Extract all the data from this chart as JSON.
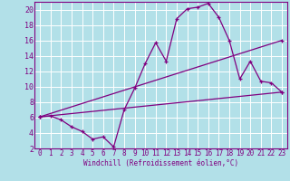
{
  "xlabel": "Windchill (Refroidissement éolien,°C)",
  "background_color": "#b2e0e8",
  "grid_color": "#c8eaf0",
  "line_color": "#800080",
  "spine_color": "#800080",
  "xlim": [
    -0.5,
    23.5
  ],
  "ylim": [
    2,
    21
  ],
  "yticks": [
    2,
    4,
    6,
    8,
    10,
    12,
    14,
    16,
    18,
    20
  ],
  "xticks": [
    0,
    1,
    2,
    3,
    4,
    5,
    6,
    7,
    8,
    9,
    10,
    11,
    12,
    13,
    14,
    15,
    16,
    17,
    18,
    19,
    20,
    21,
    22,
    23
  ],
  "line1_x": [
    0,
    1,
    2,
    3,
    4,
    5,
    6,
    7,
    8,
    9,
    10,
    11,
    12,
    13,
    14,
    15,
    16,
    17,
    18,
    19,
    20,
    21,
    22,
    23
  ],
  "line1_y": [
    6.1,
    6.2,
    5.7,
    4.8,
    4.2,
    3.2,
    3.5,
    2.2,
    7.0,
    9.8,
    13.0,
    15.7,
    13.3,
    18.8,
    20.1,
    20.3,
    20.8,
    19.0,
    16.0,
    11.0,
    13.3,
    10.7,
    10.5,
    9.3
  ],
  "line2_x": [
    0,
    23
  ],
  "line2_y": [
    6.1,
    9.3
  ],
  "line3_x": [
    0,
    23
  ],
  "line3_y": [
    6.1,
    16.0
  ],
  "tick_fontsize": 5.5,
  "xlabel_fontsize": 5.5
}
